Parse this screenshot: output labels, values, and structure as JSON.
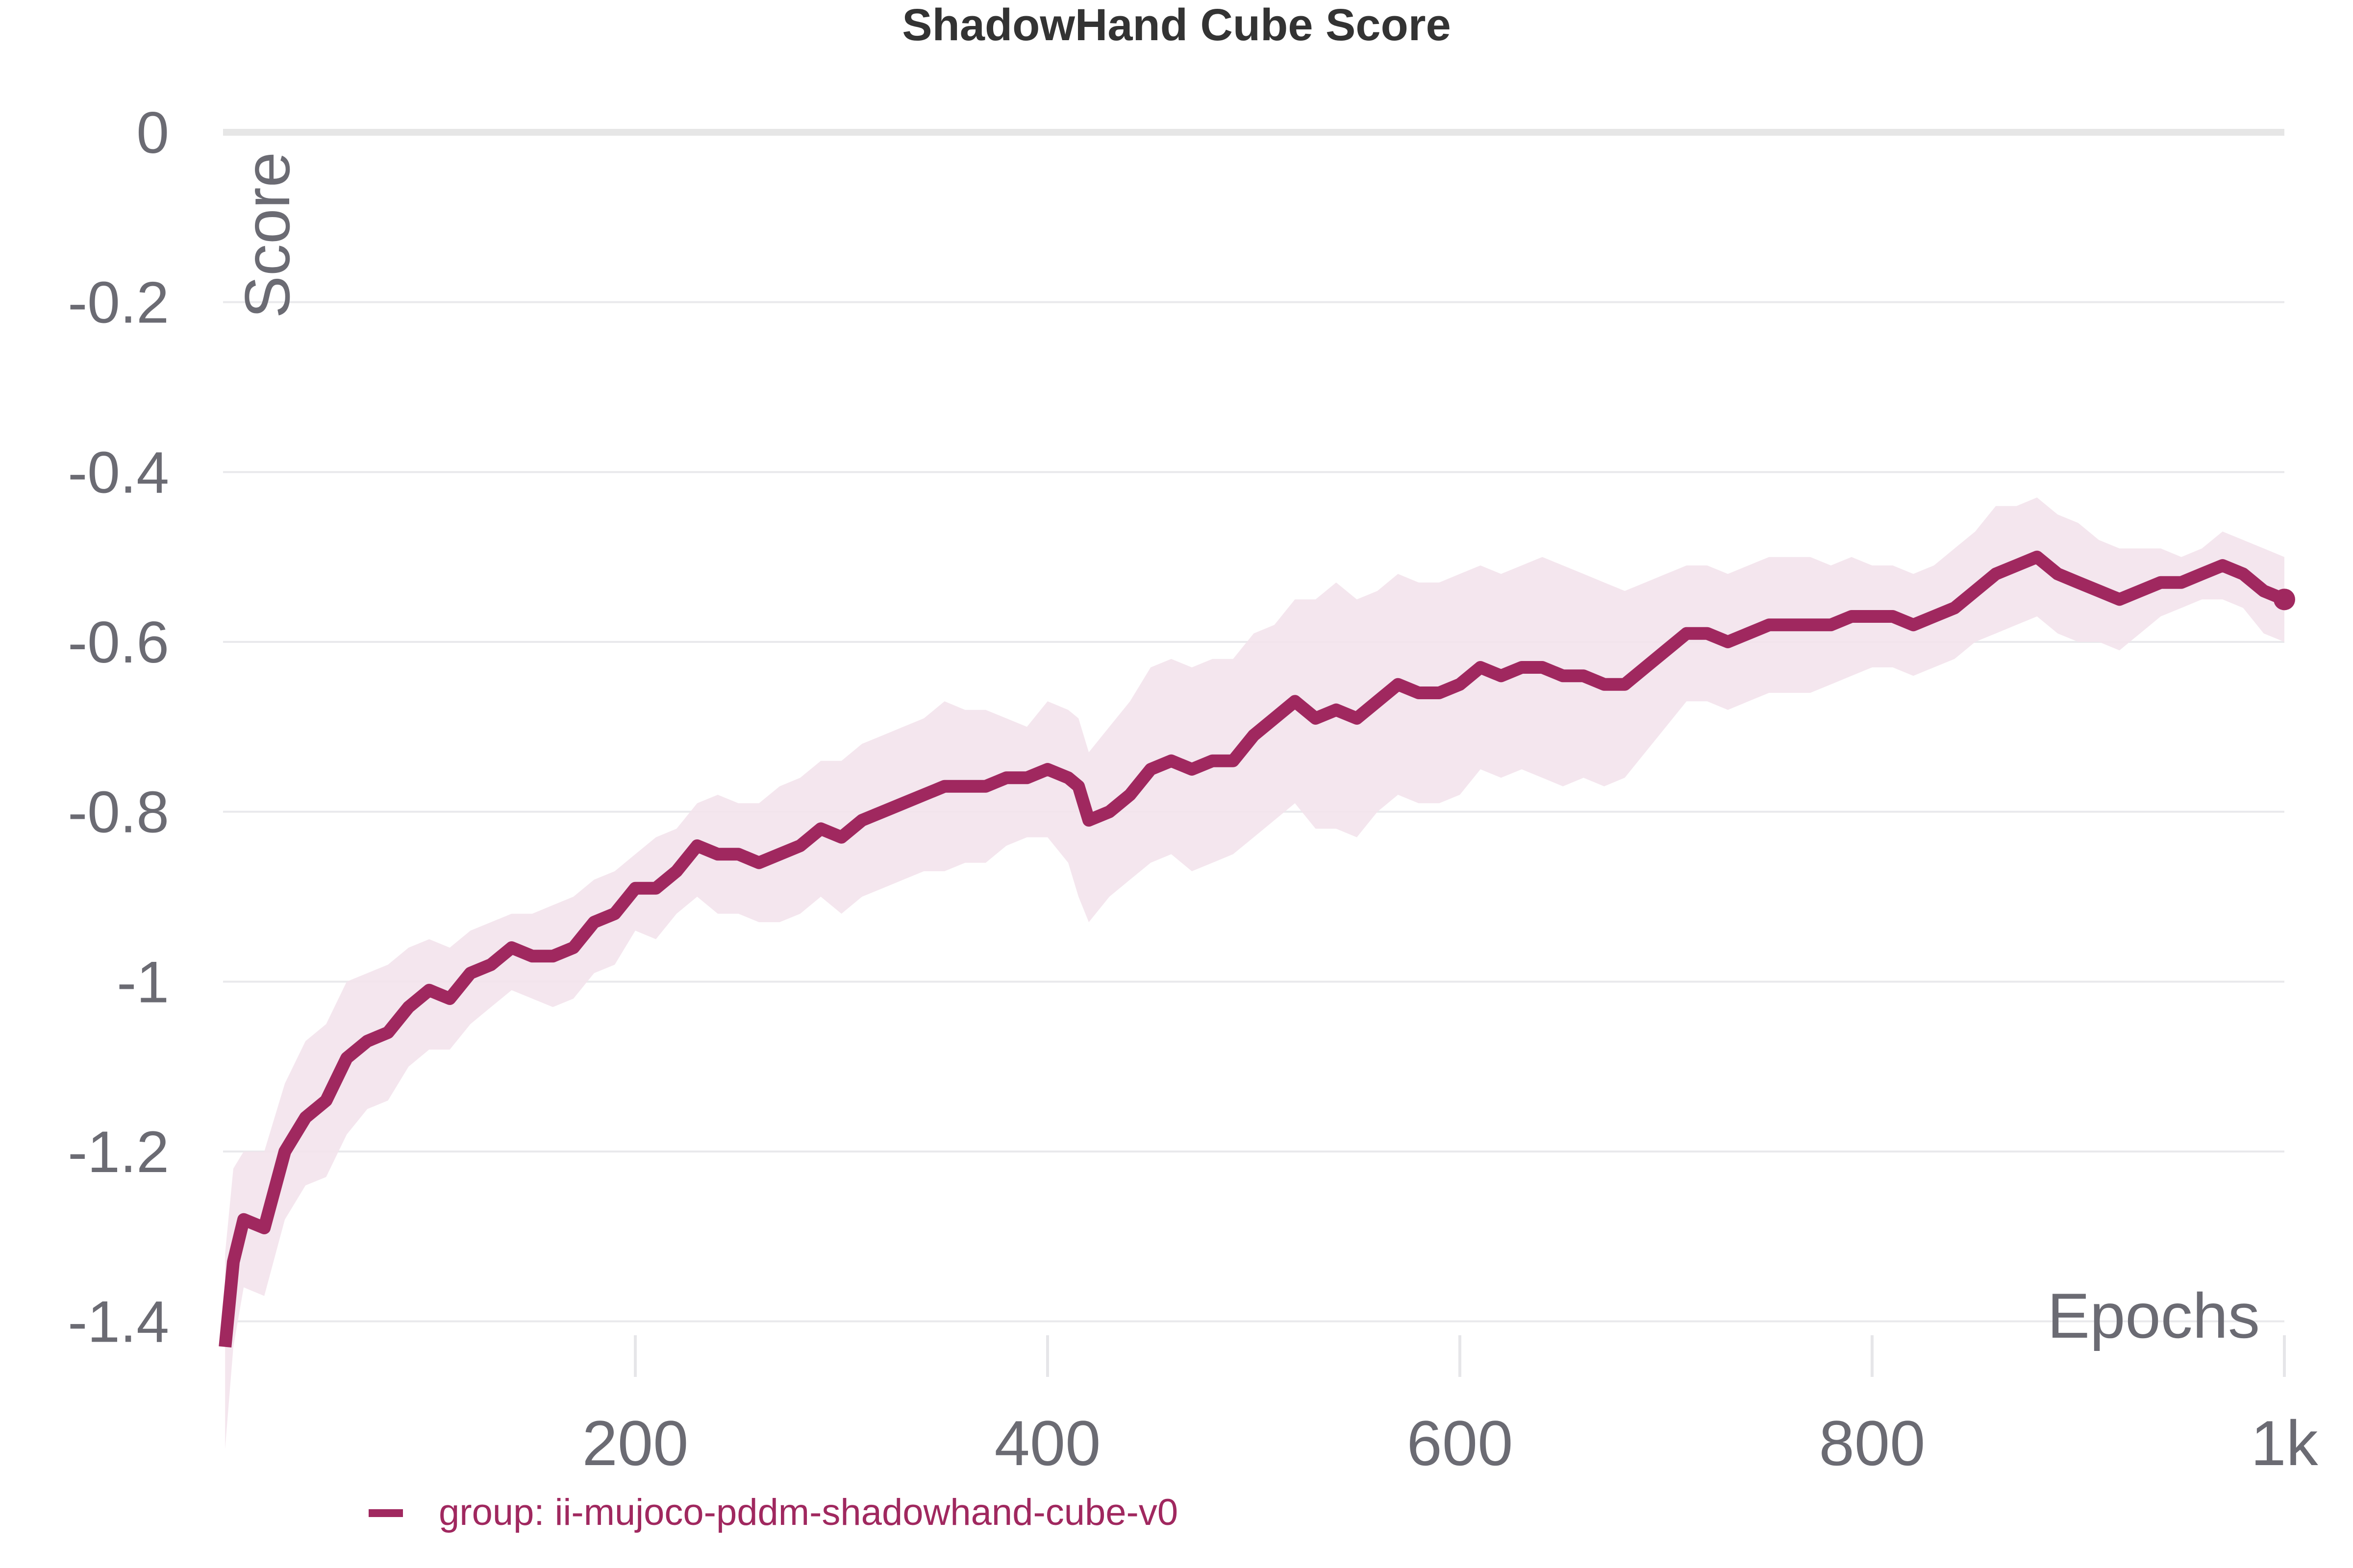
{
  "chart_data": {
    "type": "line",
    "title": "ShadowHand Cube Score",
    "xlabel": "Epochs",
    "ylabel": "Score",
    "xlim": [
      0,
      1000
    ],
    "ylim": [
      -1.5,
      0
    ],
    "x_ticks": [
      200,
      400,
      600,
      800,
      1000
    ],
    "x_tick_labels": [
      "200",
      "400",
      "600",
      "800",
      "1k"
    ],
    "y_ticks": [
      0,
      -0.2,
      -0.4,
      -0.6,
      -0.8,
      -1,
      -1.2,
      -1.4
    ],
    "y_tick_labels": [
      "0",
      "-0.2",
      "-0.4",
      "-0.6",
      "-0.8",
      "-1",
      "-1.2",
      "-1.4"
    ],
    "grid": true,
    "legend_position": "bottom-left",
    "series": [
      {
        "name": "group: ii-mujoco-pddm-shadowhand-cube-v0",
        "color": "#a0285f",
        "band_color": "#f3e3ec",
        "x": [
          1,
          5,
          10,
          20,
          30,
          40,
          50,
          60,
          70,
          80,
          90,
          100,
          110,
          120,
          130,
          140,
          150,
          160,
          170,
          180,
          190,
          200,
          210,
          220,
          230,
          240,
          250,
          260,
          270,
          280,
          290,
          300,
          310,
          320,
          330,
          340,
          350,
          360,
          370,
          380,
          390,
          400,
          410,
          415,
          420,
          430,
          440,
          450,
          460,
          470,
          480,
          490,
          500,
          510,
          520,
          530,
          540,
          550,
          560,
          570,
          580,
          590,
          600,
          610,
          620,
          630,
          640,
          650,
          660,
          670,
          680,
          690,
          700,
          710,
          720,
          730,
          740,
          750,
          760,
          770,
          780,
          790,
          800,
          810,
          820,
          830,
          840,
          850,
          860,
          870,
          880,
          890,
          900,
          910,
          920,
          930,
          940,
          950,
          960,
          970,
          980,
          990,
          1000
        ],
        "values": [
          -1.43,
          -1.33,
          -1.28,
          -1.29,
          -1.2,
          -1.16,
          -1.14,
          -1.09,
          -1.07,
          -1.06,
          -1.03,
          -1.01,
          -1.02,
          -0.99,
          -0.98,
          -0.96,
          -0.97,
          -0.97,
          -0.96,
          -0.93,
          -0.92,
          -0.89,
          -0.89,
          -0.87,
          -0.84,
          -0.85,
          -0.85,
          -0.86,
          -0.85,
          -0.84,
          -0.82,
          -0.83,
          -0.81,
          -0.8,
          -0.79,
          -0.78,
          -0.77,
          -0.77,
          -0.77,
          -0.76,
          -0.76,
          -0.75,
          -0.76,
          -0.77,
          -0.81,
          -0.8,
          -0.78,
          -0.75,
          -0.74,
          -0.75,
          -0.74,
          -0.74,
          -0.71,
          -0.69,
          -0.67,
          -0.69,
          -0.68,
          -0.69,
          -0.67,
          -0.65,
          -0.66,
          -0.66,
          -0.65,
          -0.63,
          -0.64,
          -0.63,
          -0.63,
          -0.64,
          -0.64,
          -0.65,
          -0.65,
          -0.63,
          -0.61,
          -0.59,
          -0.59,
          -0.6,
          -0.59,
          -0.58,
          -0.58,
          -0.58,
          -0.58,
          -0.57,
          -0.57,
          -0.57,
          -0.58,
          -0.57,
          -0.56,
          -0.54,
          -0.52,
          -0.51,
          -0.5,
          -0.52,
          -0.53,
          -0.54,
          -0.55,
          -0.54,
          -0.53,
          -0.53,
          -0.52,
          -0.51,
          -0.52,
          -0.54,
          -0.55
        ],
        "upper": [
          -1.32,
          -1.22,
          -1.2,
          -1.2,
          -1.12,
          -1.07,
          -1.05,
          -1.0,
          -0.99,
          -0.98,
          -0.96,
          -0.95,
          -0.96,
          -0.94,
          -0.93,
          -0.92,
          -0.92,
          -0.91,
          -0.9,
          -0.88,
          -0.87,
          -0.85,
          -0.83,
          -0.82,
          -0.79,
          -0.78,
          -0.79,
          -0.79,
          -0.77,
          -0.76,
          -0.74,
          -0.74,
          -0.72,
          -0.71,
          -0.7,
          -0.69,
          -0.67,
          -0.68,
          -0.68,
          -0.69,
          -0.7,
          -0.67,
          -0.68,
          -0.69,
          -0.73,
          -0.7,
          -0.67,
          -0.63,
          -0.62,
          -0.63,
          -0.62,
          -0.62,
          -0.59,
          -0.58,
          -0.55,
          -0.55,
          -0.53,
          -0.55,
          -0.54,
          -0.52,
          -0.53,
          -0.53,
          -0.52,
          -0.51,
          -0.52,
          -0.51,
          -0.5,
          -0.51,
          -0.52,
          -0.53,
          -0.54,
          -0.53,
          -0.52,
          -0.51,
          -0.51,
          -0.52,
          -0.51,
          -0.5,
          -0.5,
          -0.5,
          -0.51,
          -0.5,
          -0.51,
          -0.51,
          -0.52,
          -0.51,
          -0.49,
          -0.47,
          -0.44,
          -0.44,
          -0.43,
          -0.45,
          -0.46,
          -0.48,
          -0.49,
          -0.49,
          -0.49,
          -0.5,
          -0.49,
          -0.47,
          -0.48,
          -0.49,
          -0.5
        ],
        "lower": [
          -1.55,
          -1.43,
          -1.36,
          -1.37,
          -1.28,
          -1.24,
          -1.23,
          -1.18,
          -1.15,
          -1.14,
          -1.1,
          -1.08,
          -1.08,
          -1.05,
          -1.03,
          -1.01,
          -1.02,
          -1.03,
          -1.02,
          -0.99,
          -0.98,
          -0.94,
          -0.95,
          -0.92,
          -0.9,
          -0.92,
          -0.92,
          -0.93,
          -0.93,
          -0.92,
          -0.9,
          -0.92,
          -0.9,
          -0.89,
          -0.88,
          -0.87,
          -0.87,
          -0.86,
          -0.86,
          -0.84,
          -0.83,
          -0.83,
          -0.86,
          -0.9,
          -0.93,
          -0.9,
          -0.88,
          -0.86,
          -0.85,
          -0.87,
          -0.86,
          -0.85,
          -0.83,
          -0.81,
          -0.79,
          -0.82,
          -0.82,
          -0.83,
          -0.8,
          -0.78,
          -0.79,
          -0.79,
          -0.78,
          -0.75,
          -0.76,
          -0.75,
          -0.76,
          -0.77,
          -0.76,
          -0.77,
          -0.76,
          -0.73,
          -0.7,
          -0.67,
          -0.67,
          -0.68,
          -0.67,
          -0.66,
          -0.66,
          -0.66,
          -0.65,
          -0.64,
          -0.63,
          -0.63,
          -0.64,
          -0.63,
          -0.62,
          -0.6,
          -0.59,
          -0.58,
          -0.57,
          -0.59,
          -0.6,
          -0.6,
          -0.61,
          -0.59,
          -0.57,
          -0.56,
          -0.55,
          -0.55,
          -0.56,
          -0.59,
          -0.6
        ]
      }
    ]
  }
}
